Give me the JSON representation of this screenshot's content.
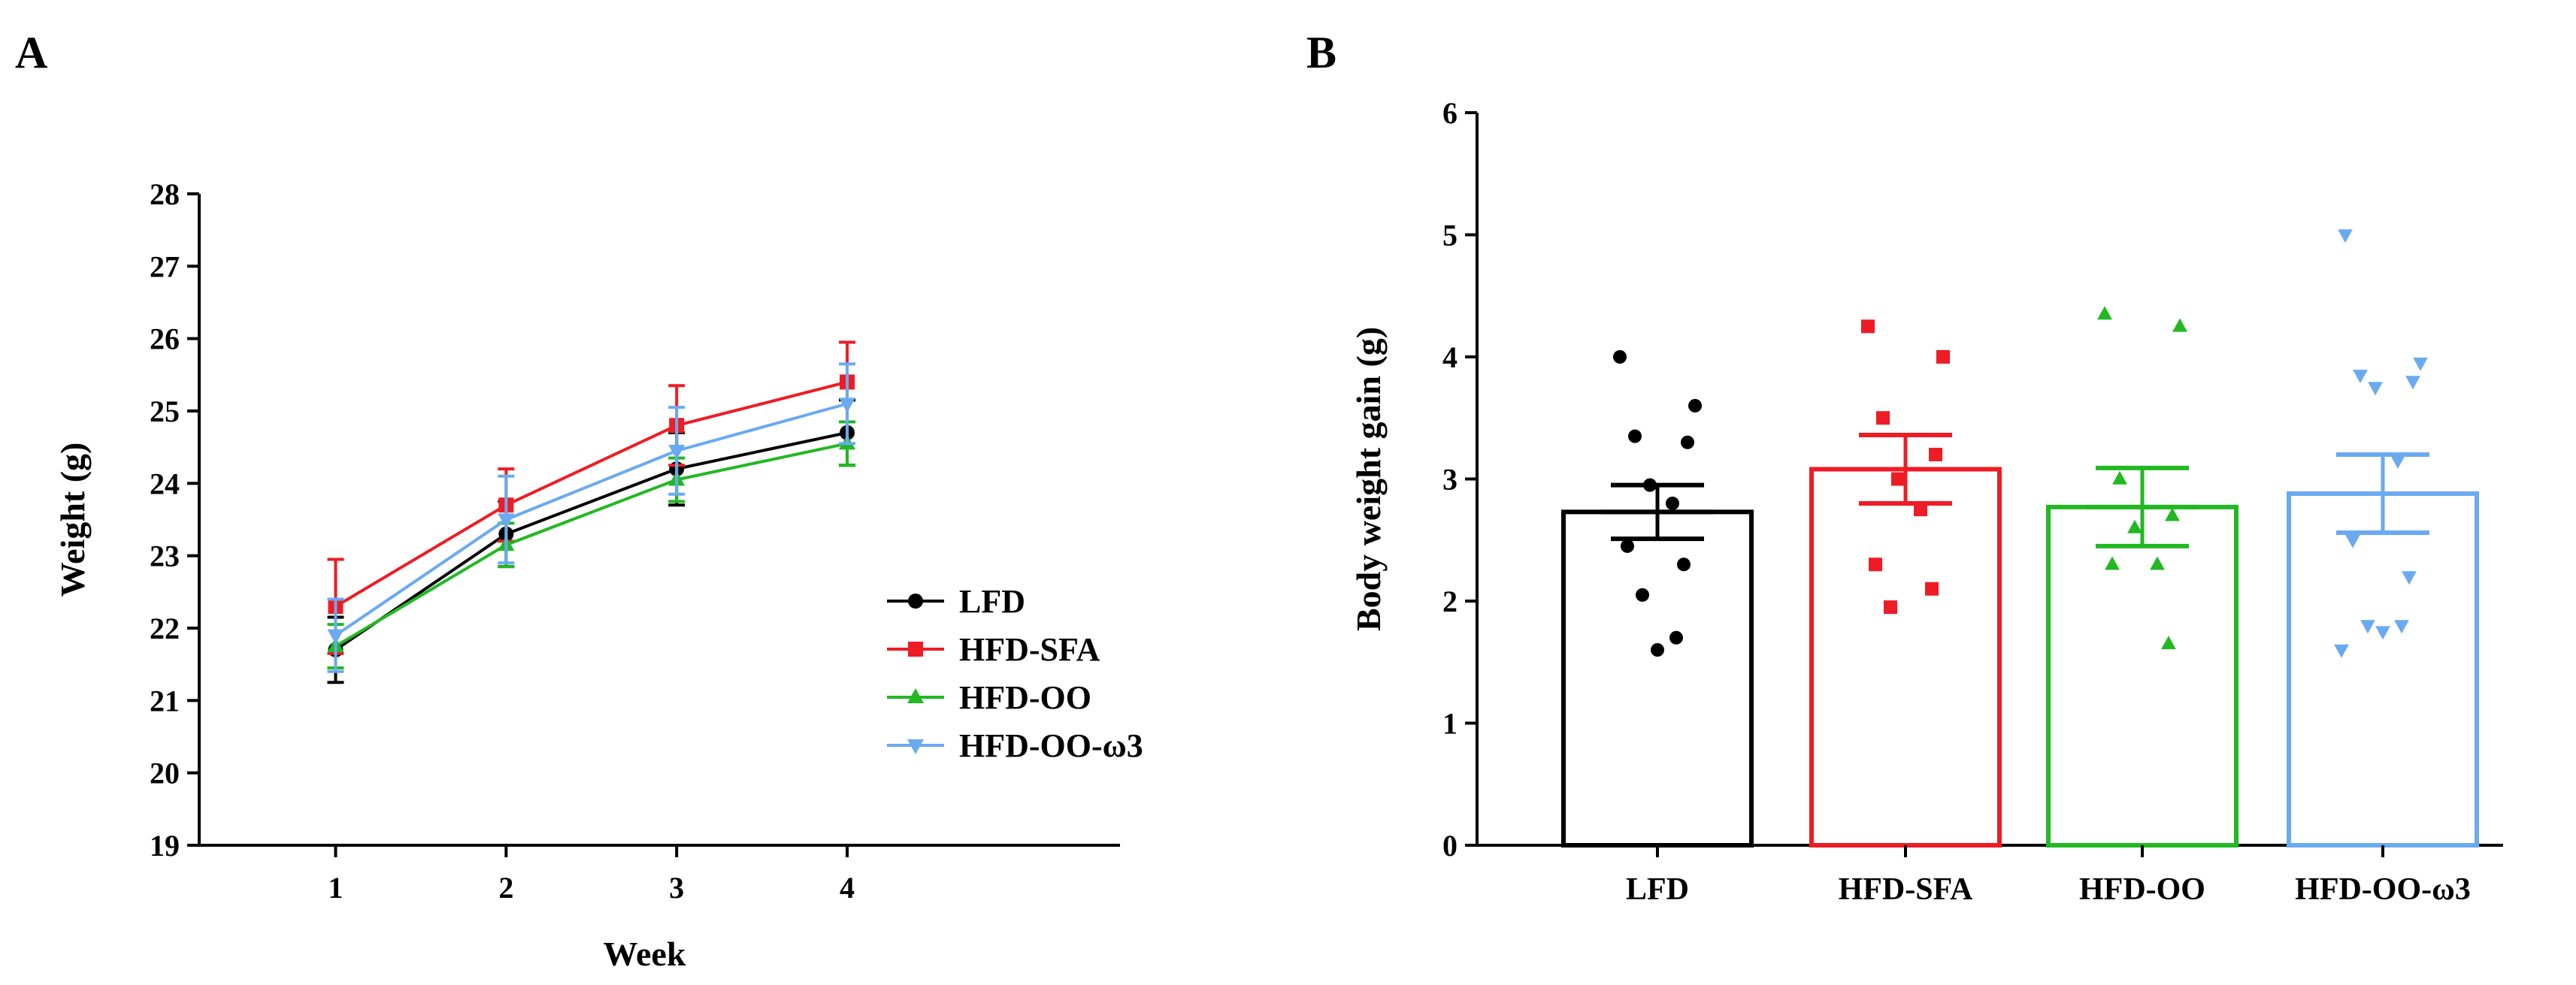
{
  "panel_labels": {
    "a": "A",
    "b": "B"
  },
  "chart_data": [
    {
      "type": "line",
      "panel": "A",
      "title": "",
      "xlabel": "Week",
      "ylabel": "Weight (g)",
      "x": [
        1,
        2,
        3,
        4
      ],
      "x_tick_labels": [
        "1",
        "2",
        "3",
        "4"
      ],
      "xlim": [
        0.2,
        5.6
      ],
      "ylim": [
        19,
        28
      ],
      "y_ticks": [
        19,
        20,
        21,
        22,
        23,
        24,
        25,
        26,
        27,
        28
      ],
      "y_tick_labels": [
        "19",
        "20",
        "21",
        "22",
        "23",
        "24",
        "25",
        "26",
        "27",
        "28"
      ],
      "legend_position": "bottom-right",
      "series": [
        {
          "name": "LFD",
          "color": "#000000",
          "marker": "circle",
          "values": [
            21.7,
            23.3,
            24.2,
            24.7
          ],
          "errors": [
            0.45,
            0.45,
            0.5,
            0.45
          ]
        },
        {
          "name": "HFD-SFA",
          "color": "#ee1c24",
          "marker": "square",
          "values": [
            22.3,
            23.7,
            24.8,
            25.4
          ],
          "errors": [
            0.65,
            0.5,
            0.55,
            0.55
          ]
        },
        {
          "name": "HFD-OO",
          "color": "#22b822",
          "marker": "triangle-up",
          "values": [
            21.75,
            23.15,
            24.05,
            24.55
          ],
          "errors": [
            0.3,
            0.3,
            0.3,
            0.3
          ]
        },
        {
          "name": "HFD-OO-ω3",
          "color": "#6aaaf0",
          "marker": "triangle-down",
          "values": [
            21.9,
            23.5,
            24.45,
            25.1
          ],
          "errors": [
            0.5,
            0.6,
            0.6,
            0.55
          ]
        }
      ]
    },
    {
      "type": "bar",
      "panel": "B",
      "title": "",
      "xlabel": "",
      "ylabel": "Body weight gain (g)",
      "categories": [
        "LFD",
        "HFD-SFA",
        "HFD-OO",
        "HFD-OO-ω3"
      ],
      "values": [
        2.73,
        3.08,
        2.77,
        2.88
      ],
      "errors": [
        0.22,
        0.28,
        0.32,
        0.32
      ],
      "colors": [
        "#000000",
        "#ee1c24",
        "#22b822",
        "#6aaaf0"
      ],
      "markers": [
        "circle",
        "square",
        "triangle-up",
        "triangle-down"
      ],
      "points": [
        [
          4.0,
          3.6,
          3.35,
          3.3,
          2.95,
          2.8,
          2.45,
          2.3,
          2.05,
          1.7,
          1.6
        ],
        [
          4.25,
          4.0,
          3.5,
          3.2,
          3.0,
          2.75,
          2.3,
          2.1,
          1.95
        ],
        [
          4.35,
          4.25,
          3.0,
          2.7,
          2.6,
          2.3,
          2.3,
          1.65
        ],
        [
          5.0,
          3.95,
          3.85,
          3.8,
          3.75,
          3.15,
          2.5,
          2.2,
          1.8,
          1.8,
          1.75,
          1.6
        ]
      ],
      "ylim": [
        0,
        6
      ],
      "y_ticks": [
        0,
        1,
        2,
        3,
        4,
        5,
        6
      ],
      "y_tick_labels": [
        "0",
        "1",
        "2",
        "3",
        "4",
        "5",
        "6"
      ]
    }
  ]
}
